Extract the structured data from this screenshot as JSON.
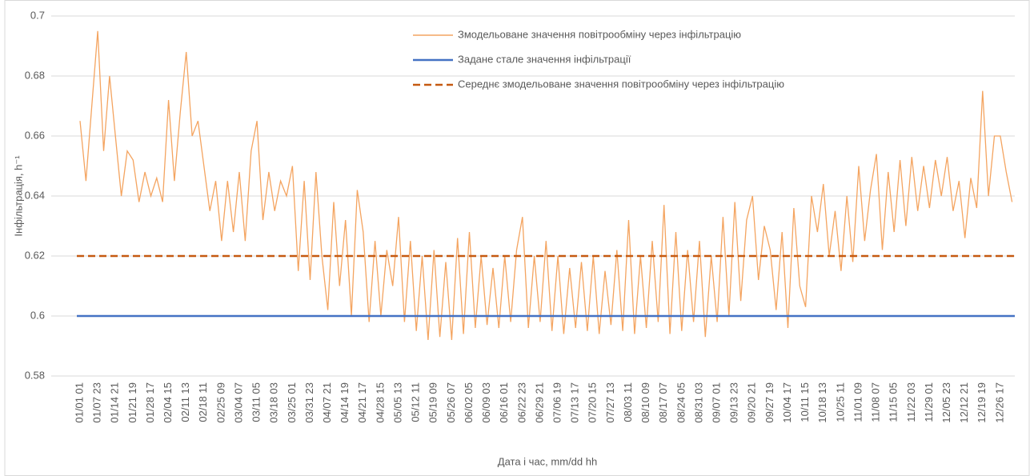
{
  "chart_data": {
    "type": "line",
    "x_label": "Дата і час, mm/dd hh",
    "y_label": "Інфільтрація, h⁻¹",
    "ylim": [
      0.58,
      0.7
    ],
    "yticks": [
      0.58,
      0.6,
      0.62,
      0.64,
      0.66,
      0.68,
      0.7
    ],
    "grid": true,
    "legend": "top",
    "categories": [
      "01/01 01",
      null,
      null,
      "01/07 23",
      null,
      null,
      "01/14 21",
      null,
      null,
      "01/21 19",
      null,
      null,
      "01/28 17",
      null,
      null,
      "02/04 15",
      null,
      null,
      "02/11 13",
      null,
      null,
      "02/18 11",
      null,
      null,
      "02/25 09",
      null,
      null,
      "03/04 07",
      null,
      null,
      "03/11 05",
      null,
      null,
      "03/18 03",
      null,
      null,
      "03/25 01",
      null,
      null,
      "03/31 23",
      null,
      null,
      "04/07 21",
      null,
      null,
      "04/14 19",
      null,
      null,
      "04/21 17",
      null,
      null,
      "04/28 15",
      null,
      null,
      "05/05 13",
      null,
      null,
      "05/12 11",
      null,
      null,
      "05/19 09",
      null,
      null,
      "05/26 07",
      null,
      null,
      "06/02 05",
      null,
      null,
      "06/09 03",
      null,
      null,
      "06/16 01",
      null,
      null,
      "06/22 23",
      null,
      null,
      "06/29 21",
      null,
      null,
      "07/06 19",
      null,
      null,
      "07/13 17",
      null,
      null,
      "07/20 15",
      null,
      null,
      "07/27 13",
      null,
      null,
      "08/03 11",
      null,
      null,
      "08/10 09",
      null,
      null,
      "08/17 07",
      null,
      null,
      "08/24 05",
      null,
      null,
      "08/31 03",
      null,
      null,
      "09/07 01",
      null,
      null,
      "09/13 23",
      null,
      null,
      "09/20 21",
      null,
      null,
      "09/27 19",
      null,
      null,
      "10/04 17",
      null,
      null,
      "10/11 15",
      null,
      null,
      "10/18 13",
      null,
      null,
      "10/25 11",
      null,
      null,
      "11/01 09",
      null,
      null,
      "11/08 07",
      null,
      null,
      "11/15 05",
      null,
      null,
      "11/22 03",
      null,
      null,
      "11/29 01",
      null,
      null,
      "12/05 23",
      null,
      null,
      "12/12 21",
      null,
      null,
      "12/19 19",
      null,
      null,
      "12/26 17",
      null,
      null
    ],
    "series": [
      {
        "name": "Змодельоване значення повітрообміну через інфільтрацію",
        "color": "#f4a460",
        "style": "line",
        "values": [
          0.665,
          0.645,
          0.67,
          0.695,
          0.655,
          0.68,
          0.66,
          0.64,
          0.655,
          0.652,
          0.638,
          0.648,
          0.64,
          0.646,
          0.638,
          0.672,
          0.645,
          0.668,
          0.688,
          0.66,
          0.665,
          0.65,
          0.635,
          0.645,
          0.625,
          0.645,
          0.628,
          0.648,
          0.625,
          0.655,
          0.665,
          0.632,
          0.648,
          0.635,
          0.645,
          0.64,
          0.65,
          0.615,
          0.645,
          0.612,
          0.648,
          0.62,
          0.602,
          0.638,
          0.61,
          0.632,
          0.6,
          0.642,
          0.628,
          0.598,
          0.625,
          0.6,
          0.622,
          0.61,
          0.633,
          0.598,
          0.625,
          0.595,
          0.62,
          0.592,
          0.622,
          0.593,
          0.618,
          0.592,
          0.626,
          0.594,
          0.628,
          0.596,
          0.62,
          0.597,
          0.616,
          0.596,
          0.62,
          0.598,
          0.622,
          0.633,
          0.596,
          0.62,
          0.598,
          0.625,
          0.595,
          0.62,
          0.594,
          0.616,
          0.596,
          0.618,
          0.595,
          0.62,
          0.594,
          0.615,
          0.597,
          0.622,
          0.595,
          0.632,
          0.594,
          0.62,
          0.596,
          0.625,
          0.598,
          0.637,
          0.594,
          0.628,
          0.595,
          0.622,
          0.598,
          0.625,
          0.593,
          0.62,
          0.598,
          0.633,
          0.6,
          0.638,
          0.605,
          0.632,
          0.64,
          0.612,
          0.63,
          0.622,
          0.602,
          0.628,
          0.596,
          0.636,
          0.61,
          0.603,
          0.64,
          0.628,
          0.644,
          0.62,
          0.635,
          0.615,
          0.64,
          0.618,
          0.65,
          0.625,
          0.642,
          0.654,
          0.622,
          0.648,
          0.628,
          0.652,
          0.63,
          0.653,
          0.635,
          0.65,
          0.636,
          0.652,
          0.64,
          0.653,
          0.635,
          0.645,
          0.626,
          0.646,
          0.636,
          0.675,
          0.64,
          0.66,
          0.66,
          0.648,
          0.638
        ]
      },
      {
        "name": "Задане стале значення інфільтрації",
        "color": "#4472c4",
        "style": "solid",
        "value": 0.6
      },
      {
        "name": "Середнє змодельоване значення повітрообміну через інфільтрацію",
        "color": "#c55a11",
        "style": "dashed",
        "value": 0.62
      }
    ]
  }
}
